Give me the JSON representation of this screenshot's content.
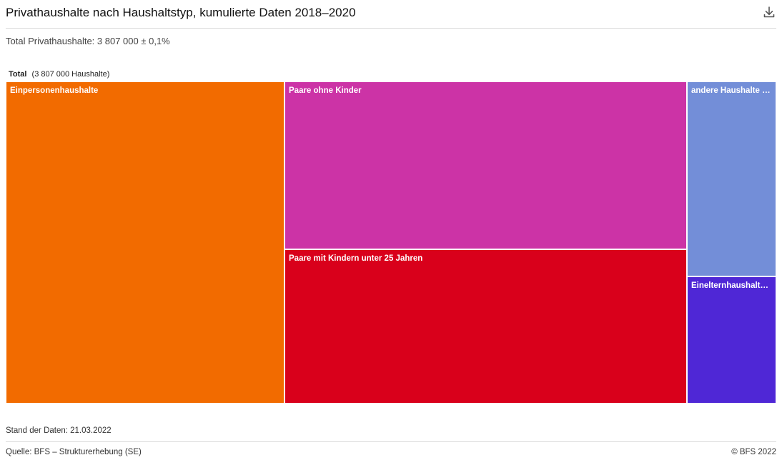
{
  "header": {
    "title": "Privathaushalte nach Haushaltstyp, kumulierte Daten 2018–2020",
    "download_icon": "download-icon"
  },
  "subtitle": "Total Privathaushalte: 3 807 000 ± 0,1%",
  "breadcrumb": {
    "root": "Total",
    "count": "(3 807 000 Haushalte)"
  },
  "footer": {
    "stand": "Stand der Daten: 21.03.2022",
    "source": "Quelle: BFS – Strukturerhebung (SE)",
    "copyright": "© BFS 2022"
  },
  "chart_data": {
    "type": "treemap",
    "total": 3807000,
    "unit": "Haushalte",
    "items": [
      {
        "label": "Einpersonenhaushalte",
        "value": 1378000,
        "color": "#f26b00"
      },
      {
        "label": "Paare ohne Kinder",
        "value": 1034000,
        "color": "#cc33a6"
      },
      {
        "label": "Paare mit Kindern unter 25 Jahren",
        "value": 953000,
        "color": "#d9001b"
      },
      {
        "label": "andere Haushalte mi…",
        "value": 268000,
        "color": "#738ed8"
      },
      {
        "label": "Einelternhaushalte …",
        "value": 174000,
        "color": "#4f27d6"
      }
    ]
  }
}
